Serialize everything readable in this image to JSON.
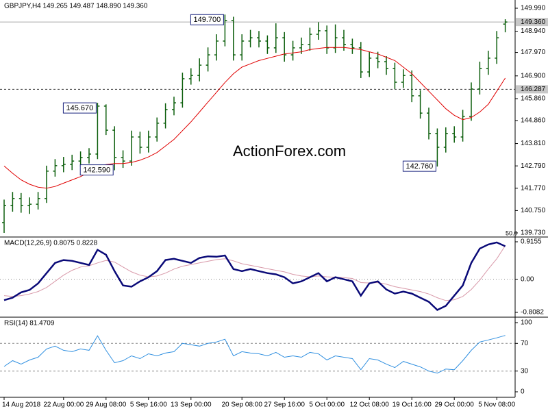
{
  "chart_data": [
    {
      "type": "ohlc",
      "title": "GBPJPY,H4  149.265 149.487 148.890 149.360",
      "watermark": "ActionForex.com",
      "corner_note": "50.0",
      "categories": [
        "14 Aug 2018",
        null,
        null,
        null,
        null,
        null,
        null,
        "22 Aug 00:00",
        null,
        null,
        null,
        null,
        "29 Aug 08:00",
        null,
        null,
        null,
        null,
        "5 Sep 16:00",
        null,
        null,
        null,
        null,
        "13 Sep 00:00",
        null,
        null,
        null,
        null,
        null,
        "20 Sep 08:00",
        null,
        null,
        null,
        null,
        "27 Sep 16:00",
        null,
        null,
        null,
        null,
        "5 Oct 00:00",
        null,
        null,
        null,
        null,
        "12 Oct 08:00",
        null,
        null,
        null,
        null,
        "19 Oct 16:00",
        null,
        null,
        null,
        null,
        "29 Oct 00:00",
        null,
        null,
        null,
        null,
        "5 Nov 08:00",
        null
      ],
      "color": "#0b5e0b",
      "open": [
        140.2,
        140.98,
        141.3,
        140.98,
        141.04,
        141.3,
        142.55,
        142.8,
        142.86,
        143.01,
        143.17,
        143.33,
        145.52,
        144.42,
        143.17,
        143.01,
        144.11,
        143.64,
        144.11,
        144.74,
        145.36,
        145.67,
        146.77,
        146.92,
        147.39,
        147.86,
        148.49,
        149.43,
        147.86,
        148.49,
        148.64,
        148.49,
        148.18,
        148.64,
        147.86,
        148.18,
        148.33,
        148.8,
        148.96,
        148.18,
        148.64,
        148.33,
        148.18,
        147.08,
        147.71,
        147.55,
        147.24,
        146.61,
        146.92,
        145.99,
        145.2,
        144.27,
        143.64,
        144.27,
        144.11,
        145.05,
        146.3,
        147.24,
        147.71,
        149.265
      ],
      "high": [
        141.25,
        141.6,
        141.55,
        141.35,
        141.6,
        142.8,
        143.1,
        143.2,
        143.3,
        143.45,
        143.6,
        145.67,
        145.6,
        144.6,
        143.5,
        144.4,
        144.35,
        144.4,
        145.0,
        145.65,
        145.95,
        147.05,
        147.25,
        147.7,
        148.2,
        148.8,
        149.7,
        149.6,
        148.8,
        149.0,
        148.95,
        148.75,
        149.3,
        148.9,
        148.5,
        148.65,
        149.1,
        149.35,
        149.2,
        149.25,
        149.0,
        148.6,
        148.45,
        148.0,
        148.0,
        147.8,
        147.5,
        147.2,
        147.15,
        146.25,
        145.45,
        144.5,
        144.55,
        144.6,
        145.35,
        146.6,
        147.55,
        148.05,
        148.95,
        149.487
      ],
      "low": [
        139.73,
        140.7,
        140.65,
        140.6,
        140.8,
        141.1,
        142.3,
        142.5,
        142.6,
        142.75,
        142.9,
        143.1,
        144.2,
        142.59,
        142.7,
        142.8,
        143.35,
        143.4,
        143.9,
        144.5,
        145.1,
        145.45,
        146.5,
        146.65,
        147.1,
        147.6,
        148.25,
        147.6,
        147.6,
        148.2,
        148.2,
        147.9,
        147.95,
        147.55,
        147.6,
        147.9,
        148.05,
        148.55,
        147.9,
        147.95,
        148.05,
        147.9,
        146.8,
        146.85,
        147.25,
        146.95,
        146.3,
        146.35,
        145.7,
        144.95,
        144.0,
        142.76,
        143.4,
        143.85,
        143.9,
        144.85,
        146.05,
        146.95,
        147.45,
        148.89
      ],
      "close": [
        140.98,
        141.3,
        140.98,
        141.04,
        141.3,
        142.55,
        142.8,
        142.86,
        143.01,
        143.17,
        143.33,
        145.52,
        144.42,
        143.17,
        143.01,
        144.11,
        143.64,
        144.11,
        144.74,
        145.36,
        145.67,
        146.77,
        146.92,
        147.39,
        147.86,
        148.49,
        149.43,
        147.86,
        148.49,
        148.64,
        148.49,
        148.18,
        148.64,
        147.86,
        148.18,
        148.33,
        148.8,
        148.96,
        148.18,
        148.64,
        148.33,
        148.18,
        147.08,
        147.71,
        147.55,
        147.24,
        146.61,
        146.92,
        145.99,
        145.2,
        144.27,
        143.64,
        144.27,
        144.11,
        145.05,
        146.3,
        147.24,
        147.71,
        148.64,
        149.36
      ],
      "ma": {
        "color": "#e00000",
        "values": [
          142.79,
          142.45,
          142.15,
          141.95,
          141.82,
          141.77,
          141.85,
          142.0,
          142.15,
          142.3,
          142.5,
          142.75,
          142.85,
          142.9,
          142.9,
          142.95,
          143.05,
          143.2,
          143.4,
          143.7,
          144.0,
          144.4,
          144.8,
          145.25,
          145.7,
          146.15,
          146.6,
          147.0,
          147.3,
          147.45,
          147.6,
          147.7,
          147.8,
          147.9,
          147.95,
          148.0,
          148.1,
          148.15,
          148.2,
          148.2,
          148.2,
          148.15,
          148.1,
          148.0,
          147.9,
          147.75,
          147.6,
          147.3,
          147.0,
          146.6,
          146.2,
          145.8,
          145.4,
          145.1,
          144.9,
          145.0,
          145.25,
          145.6,
          146.2,
          146.8
        ]
      },
      "ylim": [
        139.73,
        149.99
      ],
      "yticks": [
        {
          "value": 149.99,
          "label": "149.990"
        },
        {
          "value": 148.94,
          "label": "148.940"
        },
        {
          "value": 147.97,
          "label": "147.970"
        },
        {
          "value": 146.9,
          "label": "146.900"
        },
        {
          "value": 145.86,
          "label": "145.860"
        },
        {
          "value": 144.86,
          "label": "144.860"
        },
        {
          "value": 143.81,
          "label": "143.810"
        },
        {
          "value": 142.79,
          "label": "142.790"
        },
        {
          "value": 141.77,
          "label": "141.770"
        },
        {
          "value": 140.75,
          "label": "140.750"
        },
        {
          "value": 139.73,
          "label": "139.730"
        }
      ],
      "current_price": {
        "value": 149.36,
        "label": "149.360"
      },
      "level": 146.287,
      "annotations": [
        {
          "value": 149.7,
          "label": "149.700"
        },
        {
          "value": 145.67,
          "label": "145.670"
        },
        {
          "value": 142.59,
          "label": "142.590"
        },
        {
          "value": 142.76,
          "label": "142.760"
        }
      ]
    },
    {
      "type": "macd",
      "title": "MACD(12,26,9) 0.8075 0.8228",
      "main": {
        "color": "#0a0a78",
        "values": [
          -0.51,
          -0.45,
          -0.32,
          -0.26,
          -0.1,
          0.15,
          0.4,
          0.47,
          0.45,
          0.4,
          0.35,
          0.72,
          0.6,
          0.2,
          -0.15,
          -0.18,
          -0.05,
          0.05,
          0.2,
          0.47,
          0.5,
          0.45,
          0.4,
          0.52,
          0.56,
          0.55,
          0.58,
          0.25,
          0.2,
          0.25,
          0.2,
          0.15,
          0.12,
          0.05,
          -0.1,
          -0.05,
          0.05,
          0.15,
          -0.05,
          0.05,
          0.0,
          -0.05,
          -0.4,
          -0.1,
          -0.05,
          -0.25,
          -0.35,
          -0.3,
          -0.35,
          -0.45,
          -0.55,
          -0.75,
          -0.65,
          -0.4,
          -0.15,
          0.4,
          0.75,
          0.85,
          0.9,
          0.8075
        ]
      },
      "signal": {
        "color": "#d898a8",
        "values": [
          -0.4,
          -0.42,
          -0.4,
          -0.36,
          -0.3,
          -0.2,
          -0.05,
          0.1,
          0.22,
          0.3,
          0.33,
          0.4,
          0.46,
          0.42,
          0.3,
          0.18,
          0.1,
          0.06,
          0.08,
          0.15,
          0.25,
          0.32,
          0.36,
          0.4,
          0.44,
          0.48,
          0.5,
          0.45,
          0.38,
          0.34,
          0.3,
          0.26,
          0.22,
          0.18,
          0.12,
          0.08,
          0.06,
          0.08,
          0.06,
          0.05,
          0.04,
          0.02,
          -0.08,
          -0.09,
          -0.08,
          -0.12,
          -0.18,
          -0.22,
          -0.26,
          -0.3,
          -0.36,
          -0.45,
          -0.52,
          -0.5,
          -0.42,
          -0.25,
          -0.02,
          0.25,
          0.5,
          0.8228
        ]
      },
      "ylim": [
        -0.8082,
        0.9155
      ],
      "yticks": [
        0.9155,
        {
          "value": 0,
          "label": "0.00"
        },
        -0.8082
      ],
      "levels": [
        0
      ]
    },
    {
      "type": "line",
      "title": "RSI(14) 81.4709",
      "color": "#2f8fe0",
      "values": [
        36.6,
        45,
        40,
        46,
        50,
        62,
        66,
        60,
        58,
        62,
        60,
        81,
        60,
        42,
        45,
        52,
        48,
        55,
        52,
        56,
        58,
        70,
        68,
        66,
        70,
        72,
        76,
        52,
        58,
        56,
        55,
        52,
        57,
        50,
        52,
        50,
        57,
        55,
        46,
        52,
        50,
        48,
        32,
        48,
        46,
        40,
        35,
        44,
        40,
        36,
        30,
        27,
        33,
        32,
        45,
        60,
        72,
        75,
        78,
        81.4709
      ],
      "ylim": [
        0,
        100
      ],
      "yticks": [
        100,
        70,
        30,
        0
      ],
      "levels": [
        70,
        30
      ]
    }
  ]
}
